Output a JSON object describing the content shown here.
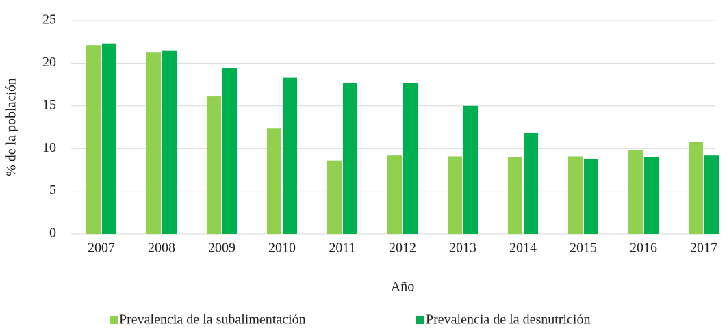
{
  "chart_data": {
    "type": "bar",
    "xlabel": "Año",
    "ylabel": "% de la población",
    "categories": [
      "2007",
      "2008",
      "2009",
      "2010",
      "2011",
      "2012",
      "2013",
      "2014",
      "2015",
      "2016",
      "2017"
    ],
    "series": [
      {
        "name": "Prevalencia de la subalimentación",
        "color": "#92d050",
        "values": [
          22.1,
          21.3,
          16.1,
          12.4,
          8.6,
          9.2,
          9.1,
          9.0,
          9.1,
          9.8,
          10.8
        ]
      },
      {
        "name": "Prevalencia de la desnutrición",
        "color": "#00b050",
        "values": [
          22.3,
          21.5,
          19.4,
          18.3,
          17.7,
          17.7,
          15.0,
          11.8,
          8.8,
          9.0,
          9.2
        ]
      }
    ],
    "ylim": [
      0,
      25
    ],
    "yticks": [
      0,
      5,
      10,
      15,
      20,
      25
    ],
    "grid": true,
    "legend": "bottom"
  }
}
